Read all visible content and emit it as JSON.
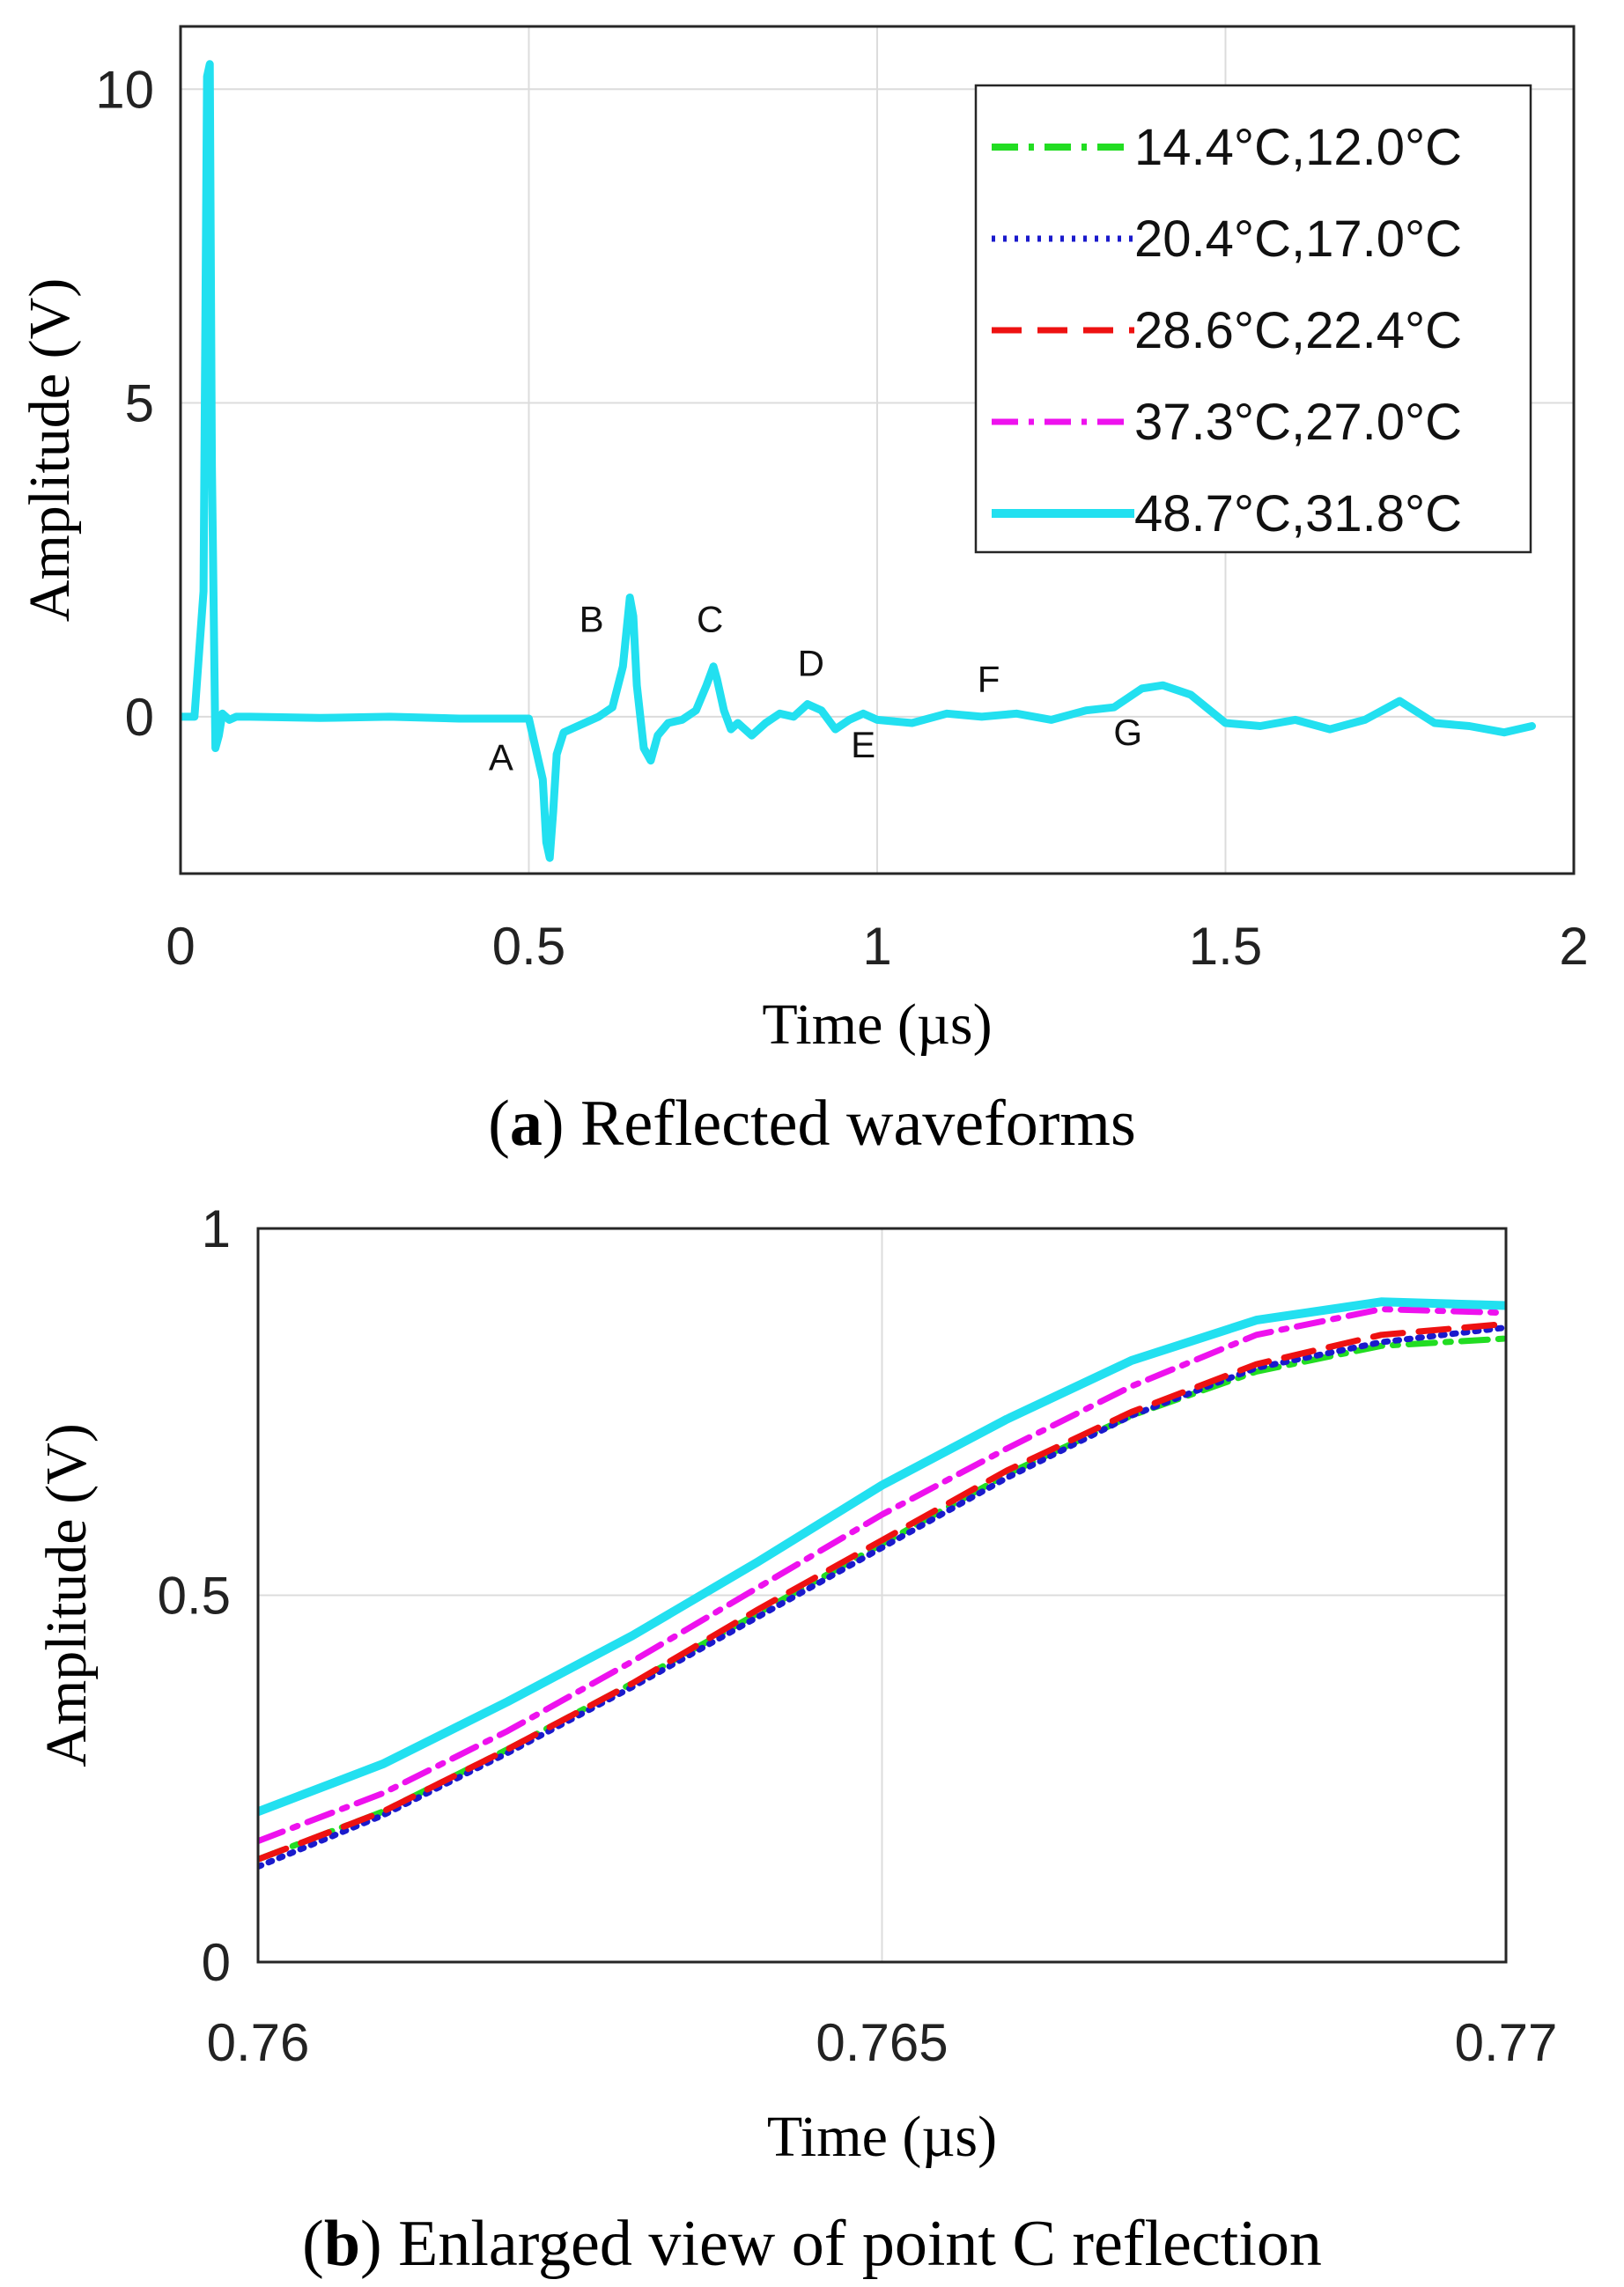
{
  "chart_data": [
    {
      "type": "line",
      "caption_label": "a",
      "caption_text": "Reflected waveforms",
      "xlabel": "Time (µs)",
      "ylabel": "Amplitude (V)",
      "xlim": [
        0,
        2
      ],
      "ylim": [
        -2.5,
        11
      ],
      "xticks": [
        0,
        0.5,
        1,
        1.5,
        2
      ],
      "xtick_labels": [
        "0",
        "0.5",
        "1",
        "1.5",
        "2"
      ],
      "yticks": [
        0,
        5,
        10
      ],
      "ytick_labels": [
        "0",
        "5",
        "10"
      ],
      "grid": true,
      "legend": "top-right",
      "annotations": [
        {
          "text": "A",
          "x": 0.46,
          "y": -0.85
        },
        {
          "text": "B",
          "x": 0.59,
          "y": 1.35
        },
        {
          "text": "C",
          "x": 0.76,
          "y": 1.35
        },
        {
          "text": "D",
          "x": 0.905,
          "y": 0.65
        },
        {
          "text": "E",
          "x": 0.98,
          "y": -0.65
        },
        {
          "text": "F",
          "x": 1.16,
          "y": 0.4
        },
        {
          "text": "G",
          "x": 1.36,
          "y": -0.45
        }
      ],
      "x": [
        0,
        0.02,
        0.033,
        0.038,
        0.042,
        0.045,
        0.05,
        0.055,
        0.06,
        0.07,
        0.08,
        0.1,
        0.2,
        0.3,
        0.4,
        0.5,
        0.52,
        0.525,
        0.53,
        0.535,
        0.54,
        0.55,
        0.58,
        0.6,
        0.62,
        0.635,
        0.645,
        0.65,
        0.655,
        0.665,
        0.675,
        0.685,
        0.7,
        0.72,
        0.74,
        0.755,
        0.765,
        0.77,
        0.78,
        0.79,
        0.8,
        0.82,
        0.84,
        0.86,
        0.88,
        0.9,
        0.92,
        0.94,
        0.96,
        0.98,
        1.0,
        1.05,
        1.1,
        1.15,
        1.2,
        1.25,
        1.3,
        1.34,
        1.38,
        1.41,
        1.45,
        1.5,
        1.55,
        1.6,
        1.65,
        1.7,
        1.75,
        1.8,
        1.85,
        1.9,
        1.94
      ],
      "series": [
        {
          "name": "14.4°C,12.0°C",
          "color": "#22dd22",
          "dash": "dashdot",
          "values": [
            0,
            0,
            2,
            10.2,
            10.4,
            4,
            -0.5,
            -0.3,
            0.05,
            -0.05,
            0,
            0,
            -0.02,
            0,
            -0.03,
            -0.03,
            -1.0,
            -2.0,
            -2.25,
            -1.5,
            -0.6,
            -0.25,
            -0.1,
            0,
            0.15,
            0.8,
            1.9,
            1.6,
            0.5,
            -0.5,
            -0.7,
            -0.3,
            -0.1,
            -0.05,
            0.1,
            0.5,
            0.8,
            0.6,
            0.1,
            -0.2,
            -0.1,
            -0.3,
            -0.1,
            0.05,
            0,
            0.2,
            0.1,
            -0.2,
            -0.05,
            0.05,
            -0.05,
            -0.1,
            0.05,
            0,
            0.05,
            -0.05,
            0.1,
            0.15,
            0.45,
            0.5,
            0.35,
            -0.1,
            -0.15,
            -0.05,
            -0.2,
            -0.05,
            0.25,
            -0.1,
            -0.15,
            -0.25,
            -0.15
          ]
        },
        {
          "name": "20.4°C,17.0°C",
          "color": "#1a1acc",
          "dash": "dotted",
          "values": [
            0,
            0,
            2,
            10.2,
            10.4,
            4,
            -0.5,
            -0.3,
            0.05,
            -0.05,
            0,
            0,
            -0.02,
            0,
            -0.03,
            -0.03,
            -1.0,
            -2.0,
            -2.25,
            -1.5,
            -0.6,
            -0.25,
            -0.1,
            0,
            0.15,
            0.8,
            1.9,
            1.6,
            0.5,
            -0.5,
            -0.7,
            -0.3,
            -0.1,
            -0.05,
            0.1,
            0.5,
            0.8,
            0.6,
            0.1,
            -0.2,
            -0.1,
            -0.3,
            -0.1,
            0.05,
            0,
            0.2,
            0.1,
            -0.2,
            -0.05,
            0.05,
            -0.05,
            -0.1,
            0.05,
            0,
            0.05,
            -0.05,
            0.1,
            0.15,
            0.45,
            0.5,
            0.35,
            -0.1,
            -0.15,
            -0.05,
            -0.2,
            -0.05,
            0.25,
            -0.1,
            -0.15,
            -0.25,
            -0.15
          ]
        },
        {
          "name": "28.6°C,22.4°C",
          "color": "#ee1111",
          "dash": "dashed",
          "values": [
            0,
            0,
            2,
            10.2,
            10.4,
            4,
            -0.5,
            -0.3,
            0.05,
            -0.05,
            0,
            0,
            -0.02,
            0,
            -0.03,
            -0.03,
            -1.0,
            -2.0,
            -2.25,
            -1.5,
            -0.6,
            -0.25,
            -0.1,
            0,
            0.15,
            0.8,
            1.9,
            1.6,
            0.5,
            -0.5,
            -0.7,
            -0.3,
            -0.1,
            -0.05,
            0.1,
            0.5,
            0.8,
            0.6,
            0.1,
            -0.2,
            -0.1,
            -0.3,
            -0.1,
            0.05,
            0,
            0.2,
            0.1,
            -0.2,
            -0.05,
            0.05,
            -0.05,
            -0.1,
            0.05,
            0,
            0.05,
            -0.05,
            0.1,
            0.15,
            0.45,
            0.5,
            0.35,
            -0.1,
            -0.15,
            -0.05,
            -0.2,
            -0.05,
            0.25,
            -0.1,
            -0.15,
            -0.25,
            -0.15
          ]
        },
        {
          "name": "37.3°C,27.0°C",
          "color": "#ee11ee",
          "dash": "dashdot",
          "values": [
            0,
            0,
            2,
            10.2,
            10.4,
            4,
            -0.5,
            -0.3,
            0.05,
            -0.05,
            0,
            0,
            -0.02,
            0,
            -0.03,
            -0.03,
            -1.0,
            -2.0,
            -2.25,
            -1.5,
            -0.6,
            -0.25,
            -0.1,
            0,
            0.15,
            0.8,
            1.9,
            1.6,
            0.5,
            -0.5,
            -0.7,
            -0.3,
            -0.1,
            -0.05,
            0.1,
            0.5,
            0.8,
            0.6,
            0.1,
            -0.2,
            -0.1,
            -0.3,
            -0.1,
            0.05,
            0,
            0.2,
            0.1,
            -0.2,
            -0.05,
            0.05,
            -0.05,
            -0.1,
            0.05,
            0,
            0.05,
            -0.05,
            0.1,
            0.15,
            0.45,
            0.5,
            0.35,
            -0.1,
            -0.15,
            -0.05,
            -0.2,
            -0.05,
            0.25,
            -0.1,
            -0.15,
            -0.25,
            -0.15
          ]
        },
        {
          "name": "48.7°C,31.8°C",
          "color": "#22e0f0",
          "dash": "solid",
          "values": [
            0,
            0,
            2,
            10.2,
            10.4,
            4,
            -0.5,
            -0.3,
            0.05,
            -0.05,
            0,
            0,
            -0.02,
            0,
            -0.03,
            -0.03,
            -1.0,
            -2.0,
            -2.25,
            -1.5,
            -0.6,
            -0.25,
            -0.1,
            0,
            0.15,
            0.8,
            1.9,
            1.6,
            0.5,
            -0.5,
            -0.7,
            -0.3,
            -0.1,
            -0.05,
            0.1,
            0.5,
            0.8,
            0.6,
            0.1,
            -0.2,
            -0.1,
            -0.3,
            -0.1,
            0.05,
            0,
            0.2,
            0.1,
            -0.2,
            -0.05,
            0.05,
            -0.05,
            -0.1,
            0.05,
            0,
            0.05,
            -0.05,
            0.1,
            0.15,
            0.45,
            0.5,
            0.35,
            -0.1,
            -0.15,
            -0.05,
            -0.2,
            -0.05,
            0.25,
            -0.1,
            -0.15,
            -0.25,
            -0.15
          ]
        }
      ]
    },
    {
      "type": "line",
      "caption_label": "b",
      "caption_text": "Enlarged view of point C reflection",
      "xlabel": "Time (µs)",
      "ylabel": "Amplitude (V)",
      "xlim": [
        0.76,
        0.77
      ],
      "ylim": [
        0,
        1
      ],
      "xticks": [
        0.76,
        0.765,
        0.77
      ],
      "xtick_labels": [
        "0.76",
        "0.765",
        "0.77"
      ],
      "yticks": [
        0,
        0.5,
        1
      ],
      "ytick_labels": [
        "0",
        "0.5",
        "1"
      ],
      "grid": true,
      "x": [
        0.76,
        0.761,
        0.762,
        0.763,
        0.764,
        0.765,
        0.766,
        0.767,
        0.768,
        0.769,
        0.77
      ],
      "series": [
        {
          "name": "14.4°C,12.0°C",
          "color": "#22dd22",
          "dash": "dashdot",
          "values": [
            0.14,
            0.205,
            0.29,
            0.38,
            0.475,
            0.57,
            0.665,
            0.745,
            0.805,
            0.84,
            0.85
          ]
        },
        {
          "name": "20.4°C,17.0°C",
          "color": "#1a1acc",
          "dash": "dotted",
          "values": [
            0.13,
            0.2,
            0.285,
            0.375,
            0.47,
            0.565,
            0.66,
            0.745,
            0.81,
            0.845,
            0.865
          ]
        },
        {
          "name": "28.6°C,22.4°C",
          "color": "#ee1111",
          "dash": "dashed",
          "values": [
            0.14,
            0.205,
            0.29,
            0.38,
            0.48,
            0.575,
            0.67,
            0.75,
            0.815,
            0.855,
            0.87
          ]
        },
        {
          "name": "37.3°C,27.0°C",
          "color": "#ee11ee",
          "dash": "dashdot",
          "values": [
            0.165,
            0.23,
            0.315,
            0.41,
            0.51,
            0.61,
            0.7,
            0.785,
            0.855,
            0.89,
            0.885
          ]
        },
        {
          "name": "48.7°C,31.8°C",
          "color": "#22e0f0",
          "dash": "solid",
          "values": [
            0.205,
            0.27,
            0.355,
            0.445,
            0.545,
            0.65,
            0.74,
            0.82,
            0.875,
            0.9,
            0.895
          ]
        }
      ]
    }
  ]
}
